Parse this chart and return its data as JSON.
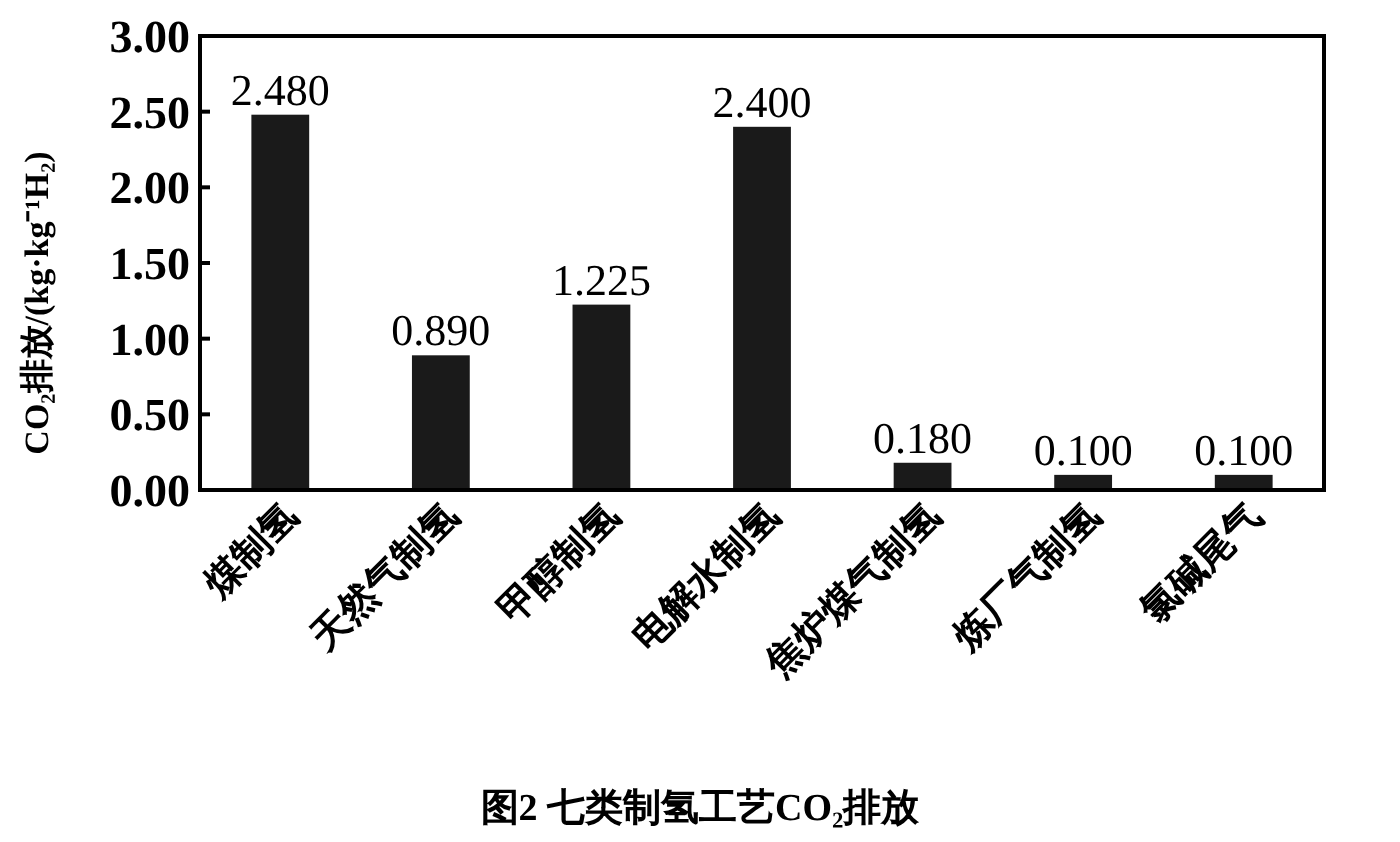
{
  "chart_data": {
    "type": "bar",
    "title": "图2 七类制氢工艺CO₂排放",
    "ylabel": "CO₂排放/(kg·kg⁻¹H₂)",
    "categories": [
      "煤制氢",
      "天然气制氢",
      "甲醇制氢",
      "电解水制氢",
      "焦炉煤气制氢",
      "炼厂气制氢",
      "氯碱尾气"
    ],
    "values": [
      2.48,
      0.89,
      1.225,
      2.4,
      0.18,
      0.1,
      0.1
    ],
    "value_labels": [
      "2.480",
      "0.890",
      "1.225",
      "2.400",
      "0.180",
      "0.100",
      "0.100"
    ],
    "color": "#1a1a1a",
    "ylim": [
      0,
      3
    ],
    "yticks": [
      {
        "value": 0,
        "label": "0.00"
      },
      {
        "value": 0.5,
        "label": "0.50"
      },
      {
        "value": 1,
        "label": "1.00"
      },
      {
        "value": 1.5,
        "label": "1.50"
      },
      {
        "value": 2,
        "label": "2.00"
      },
      {
        "value": 2.5,
        "label": "2.50"
      },
      {
        "value": 3,
        "label": "3.00"
      }
    ],
    "grid": false
  }
}
